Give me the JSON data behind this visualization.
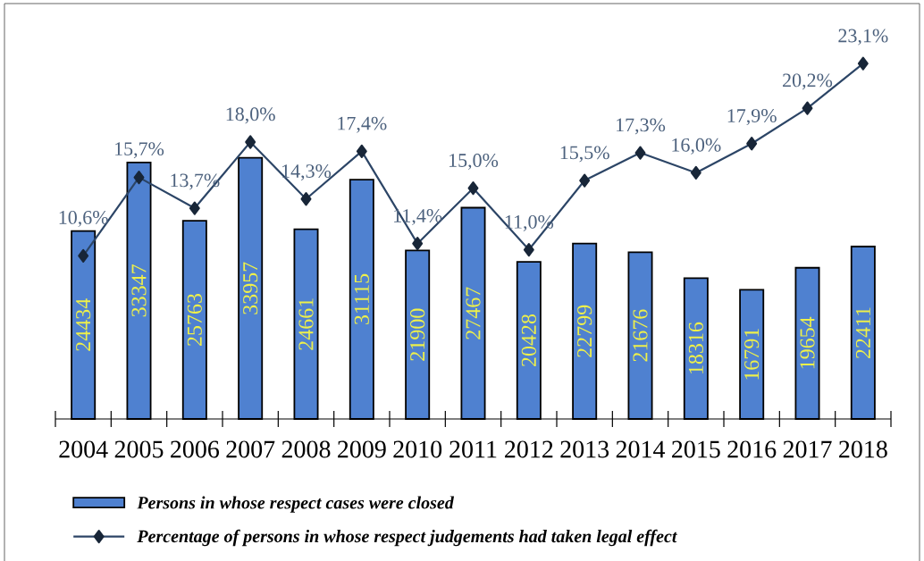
{
  "chart_data": {
    "type": "bar",
    "categories": [
      "2004",
      "2005",
      "2006",
      "2007",
      "2008",
      "2009",
      "2010",
      "2011",
      "2012",
      "2013",
      "2014",
      "2015",
      "2016",
      "2017",
      "2018"
    ],
    "series": [
      {
        "name": "Persons in whose respect cases were closed",
        "color": "#4f81d0",
        "values": [
          24434,
          33347,
          25763,
          33957,
          24661,
          31115,
          21900,
          27467,
          20428,
          22799,
          21676,
          18316,
          16791,
          19654,
          22411
        ],
        "value_labels": [
          "24434",
          "33347",
          "25763",
          "33957",
          "24661",
          "31115",
          "21900",
          "27467",
          "20428",
          "22799",
          "21676",
          "18316",
          "16791",
          "19654",
          "22411"
        ]
      },
      {
        "name": "Percentage of persons in whose respect judgements had taken legal effect",
        "type": "line",
        "axis": "y2",
        "color": "#2c4566",
        "marker": "diamond",
        "values": [
          10.6,
          15.7,
          13.7,
          18.0,
          14.3,
          17.4,
          11.4,
          15.0,
          11.0,
          15.5,
          17.3,
          16.0,
          17.9,
          20.2,
          23.1
        ],
        "value_labels": [
          "10,6%",
          "15,7%",
          "13,7%",
          "18,0%",
          "14,3%",
          "17,4%",
          "11,4%",
          "15,0%",
          "11,0%",
          "15,5%",
          "17,3%",
          "16,0%",
          "17,9%",
          "20,2%",
          "23,1%"
        ]
      }
    ],
    "ylim": [
      0,
      54000
    ],
    "y2lim": [
      0,
      27
    ],
    "tick_labels": "x",
    "legend": "bottom"
  }
}
